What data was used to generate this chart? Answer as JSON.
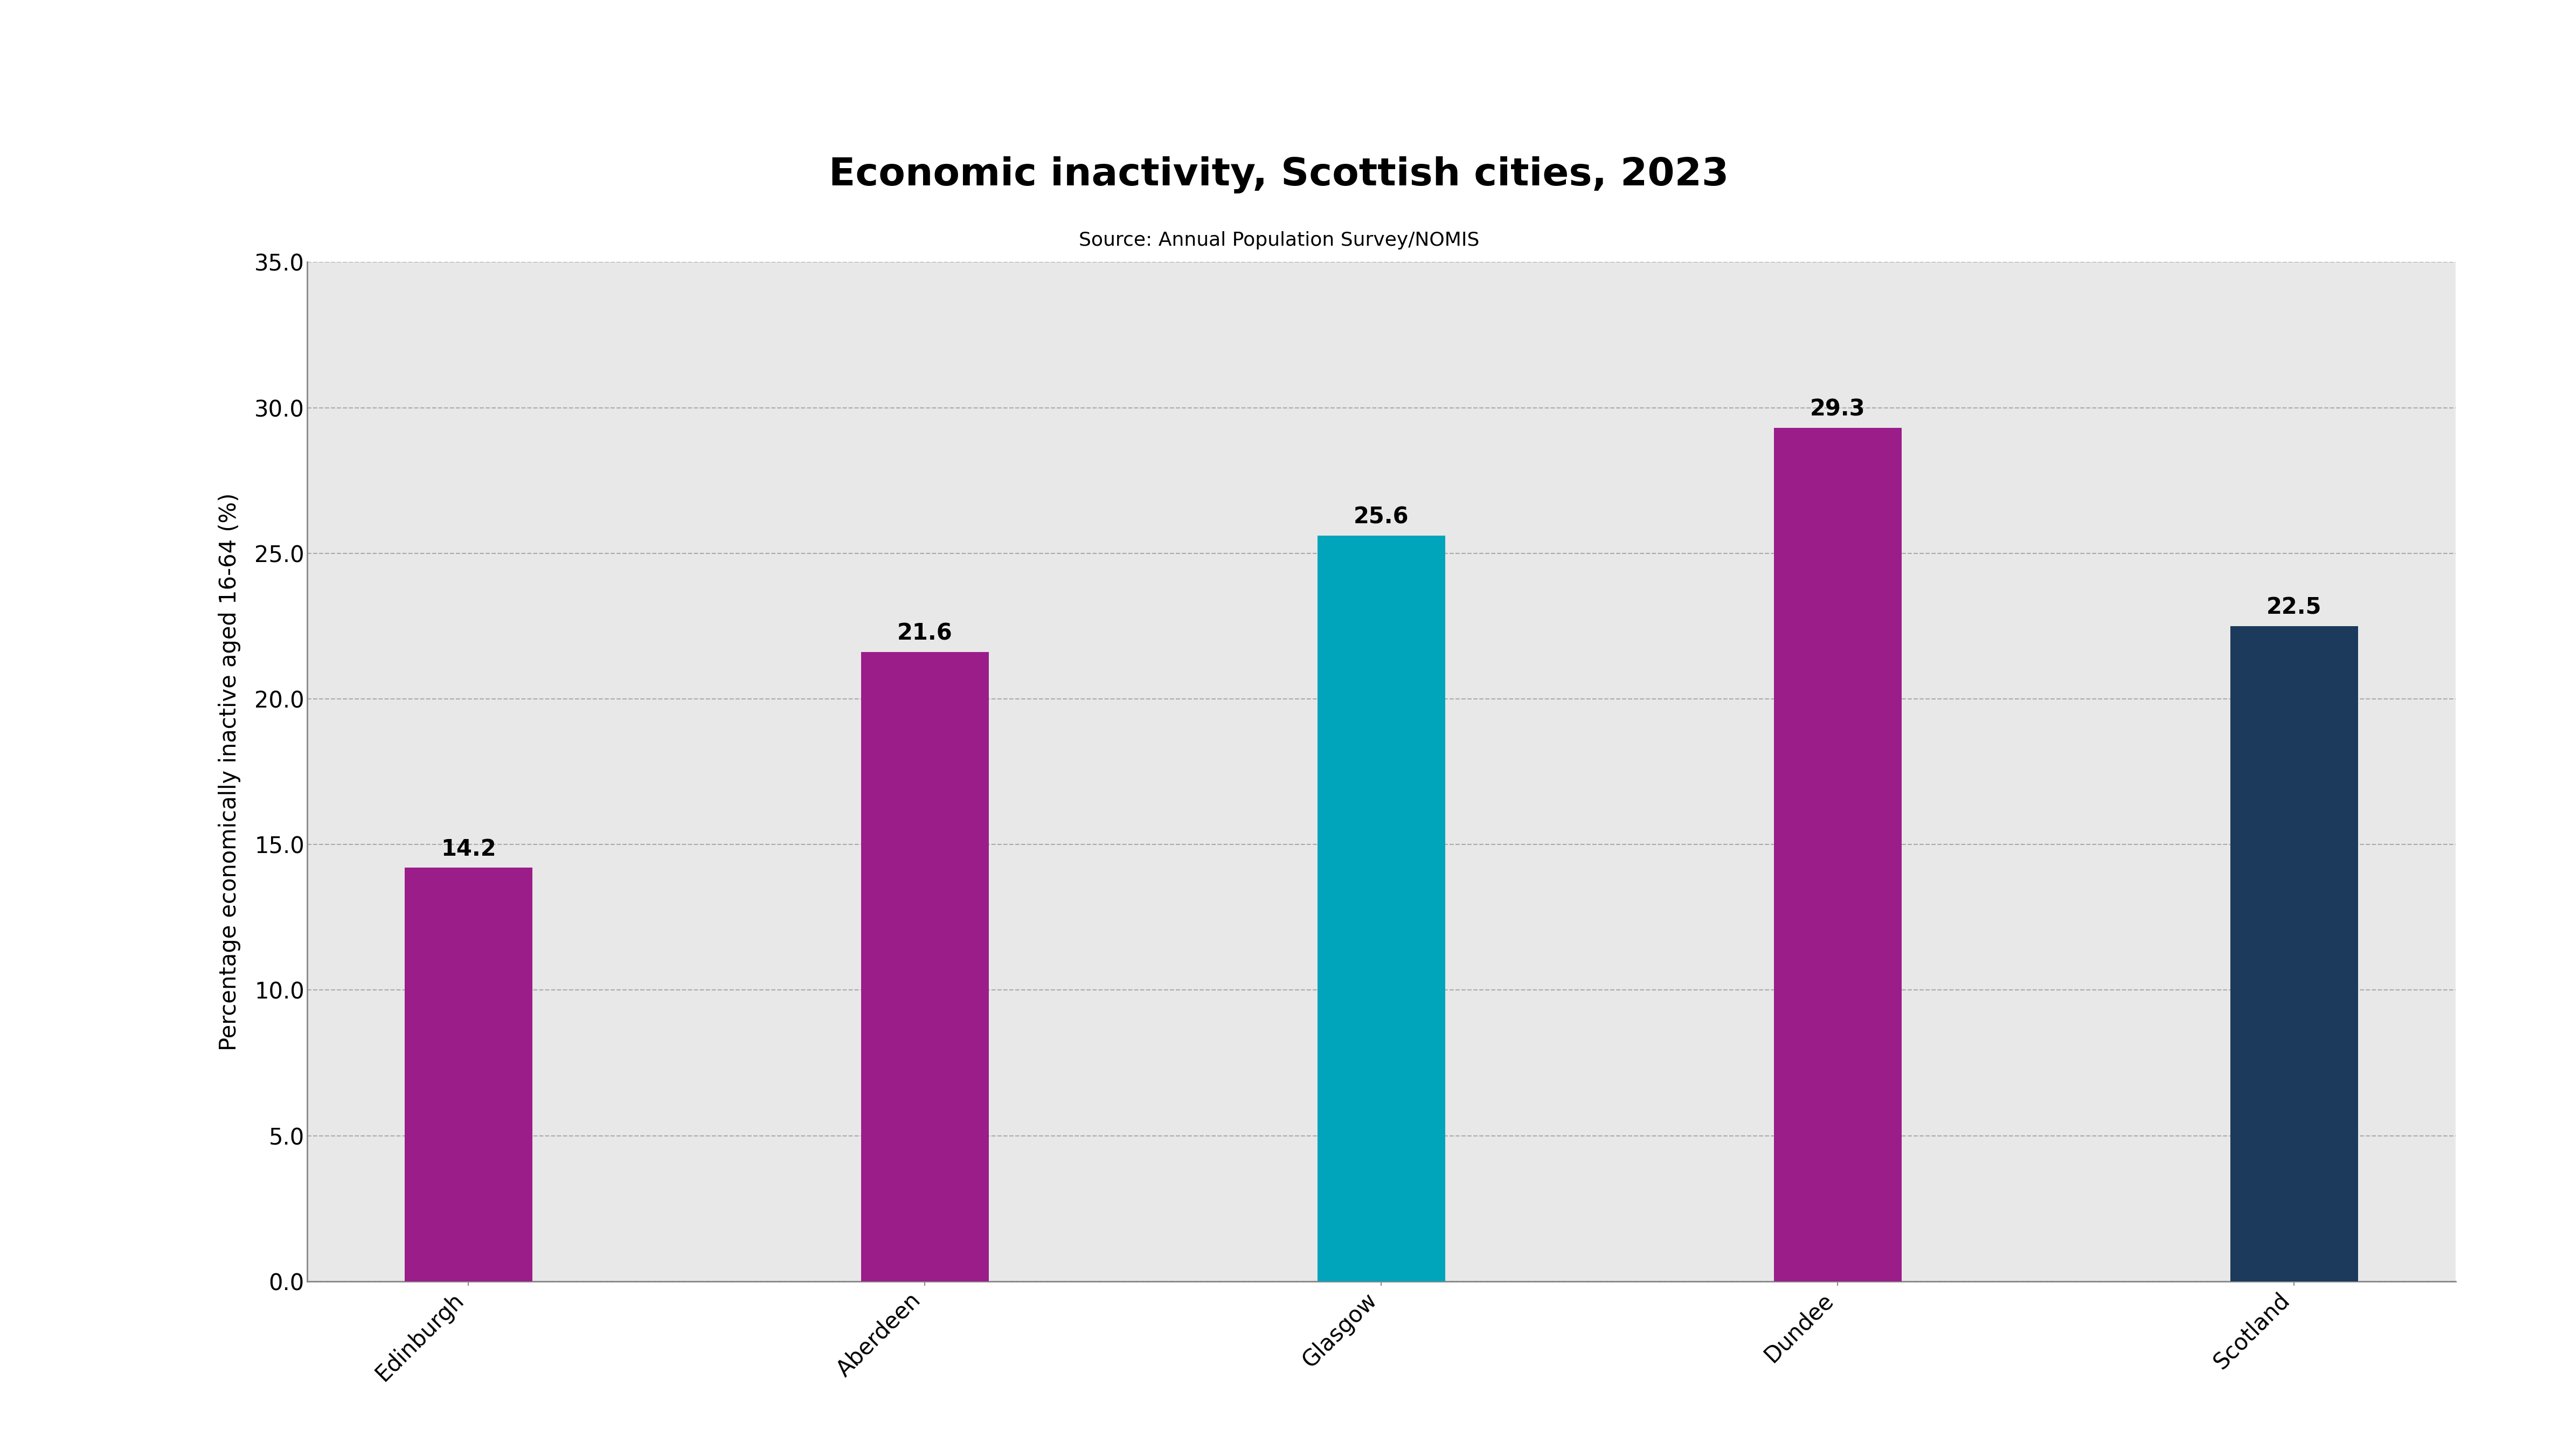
{
  "title": "Economic inactivity, Scottish cities, 2023",
  "subtitle": "Source: Annual Population Survey/NOMIS",
  "categories": [
    "Edinburgh",
    "Aberdeen",
    "Glasgow",
    "Dundee",
    "Scotland"
  ],
  "values": [
    14.2,
    21.6,
    25.6,
    29.3,
    22.5
  ],
  "bar_colors": [
    "#9B1D8A",
    "#9B1D8A",
    "#00A4BB",
    "#9B1D8A",
    "#1B3A5C"
  ],
  "ylabel": "Percentage economically inactive aged 16-64 (%)",
  "ylim": [
    0,
    35
  ],
  "yticks": [
    0.0,
    5.0,
    10.0,
    15.0,
    20.0,
    25.0,
    30.0,
    35.0
  ],
  "plot_bg_color": "#e8e8e8",
  "outer_bg_color": "#ffffff",
  "title_fontsize": 52,
  "subtitle_fontsize": 26,
  "ylabel_fontsize": 30,
  "tick_fontsize": 30,
  "label_fontsize": 30,
  "grid_color": "#aaaaaa",
  "bar_width": 0.28
}
